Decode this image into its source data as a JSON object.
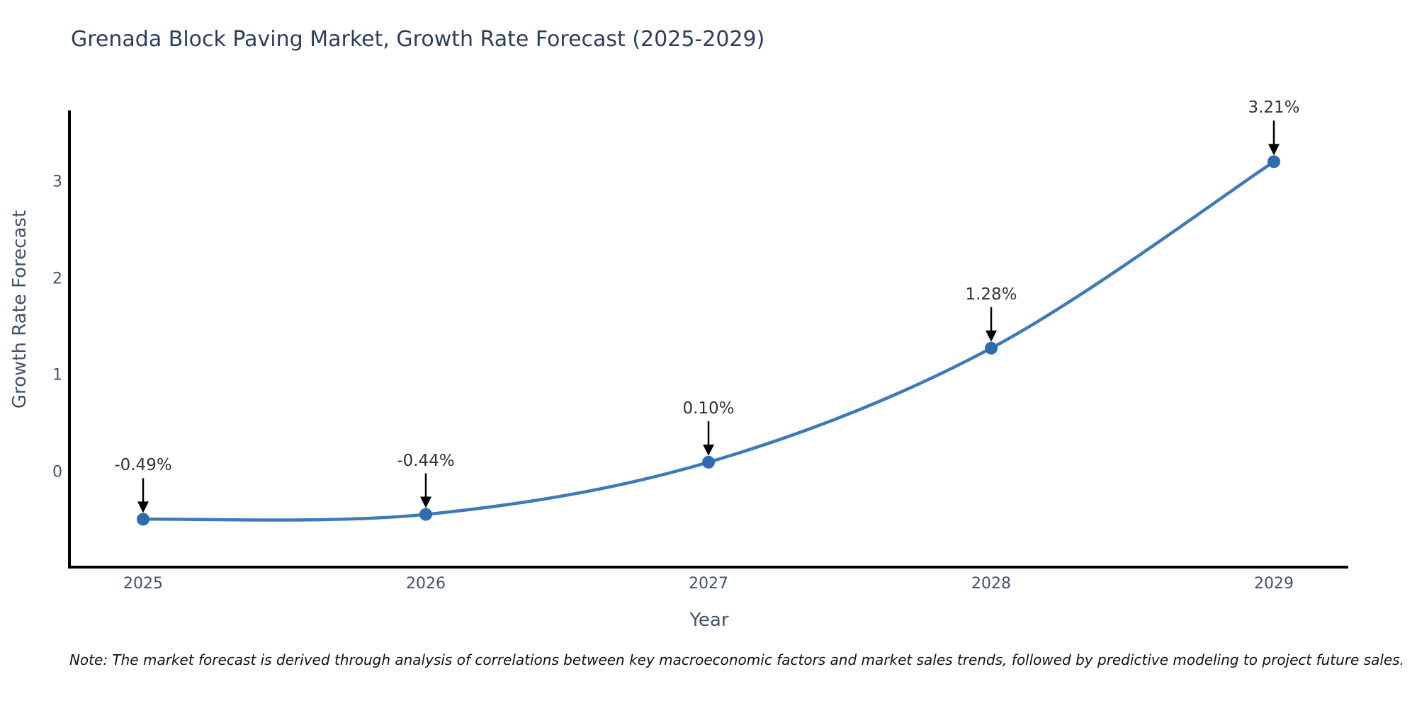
{
  "chart_data": {
    "type": "line",
    "title": "Grenada Block Paving Market, Growth Rate Forecast (2025-2029)",
    "xlabel": "Year",
    "ylabel": "Growth Rate Forecast",
    "x": [
      "2025",
      "2026",
      "2027",
      "2028",
      "2029"
    ],
    "series": [
      {
        "name": "Growth Rate Forecast",
        "values": [
          -0.49,
          -0.44,
          0.1,
          1.28,
          3.21
        ]
      }
    ],
    "annotations": [
      "-0.49%",
      "-0.44%",
      "0.10%",
      "1.28%",
      "3.21%"
    ],
    "yticks": [
      0,
      1,
      2,
      3
    ],
    "ylim": [
      -0.99,
      3.73
    ],
    "grid": false,
    "legend": false,
    "line_color": "#3e7ab8",
    "marker_color": "#2e6cae",
    "arrow_color": "#000000",
    "spine_color": "#000000",
    "curve_style": "spline"
  },
  "footer": {
    "note": "Note: The market forecast is derived through analysis of correlations between key macroeconomic factors and market sales trends, followed by predictive modeling to project future sales."
  }
}
